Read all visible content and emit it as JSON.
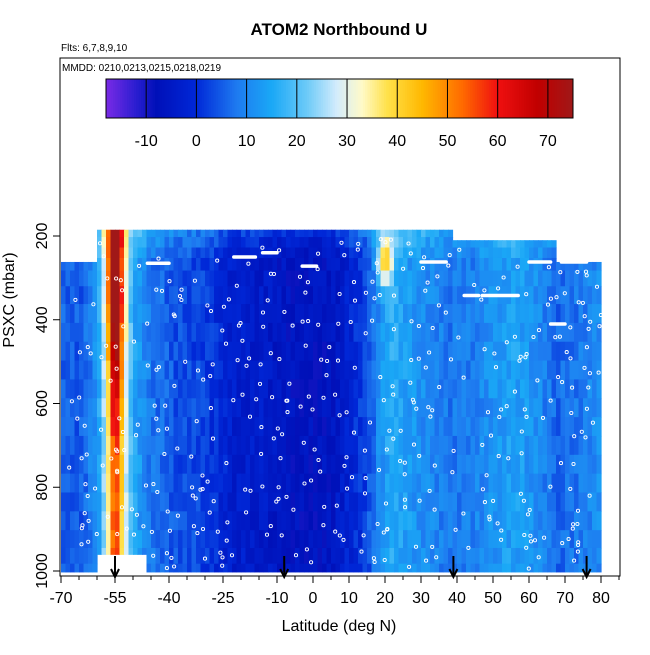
{
  "chart_data": {
    "type": "heatmap",
    "title": "ATOM2 Northbound U",
    "subtitle_flights": "Flts: 6,7,8,9,10",
    "subtitle_dates": "MMDD: 0210,0213,0215,0218,0219",
    "xlabel": "Latitude (deg N)",
    "ylabel": "PSXC (mbar)",
    "xlim": [
      -70,
      86
    ],
    "ylim": [
      1010,
      90
    ],
    "y_reversed": true,
    "x_ticks": [
      -70,
      -55,
      -40,
      -25,
      -10,
      0,
      10,
      20,
      30,
      40,
      50,
      60,
      70,
      80
    ],
    "x_tick_labels": [
      "-70",
      "-55",
      "-40",
      "-25",
      "-10",
      "0",
      "10",
      "20",
      "30",
      "40",
      "50",
      "60",
      "70",
      "80"
    ],
    "x_minor_ticks": [
      -65,
      -60,
      -50,
      -45,
      -35,
      -30,
      -20,
      -15,
      -5,
      5,
      15,
      25,
      35,
      45,
      55,
      65,
      75,
      85
    ],
    "y_ticks": [
      200,
      400,
      600,
      800,
      1000
    ],
    "y_tick_labels": [
      "200",
      "400",
      "600",
      "800",
      "1000"
    ],
    "colorbar": {
      "range": [
        -18,
        75
      ],
      "ticks": [
        -10,
        0,
        10,
        20,
        30,
        40,
        50,
        60,
        70
      ],
      "tick_labels": [
        "-10",
        "0",
        "10",
        "20",
        "30",
        "40",
        "50",
        "60",
        "70"
      ],
      "stops": [
        {
          "v": -18,
          "color": "#7a2ae6"
        },
        {
          "v": -12,
          "color": "#2a1ed0"
        },
        {
          "v": -8,
          "color": "#0010b8"
        },
        {
          "v": 0,
          "color": "#0028d8"
        },
        {
          "v": 8,
          "color": "#1e7af0"
        },
        {
          "v": 15,
          "color": "#1aa8f6"
        },
        {
          "v": 22,
          "color": "#6ccaf8"
        },
        {
          "v": 28,
          "color": "#d4ecfc"
        },
        {
          "v": 33,
          "color": "#fffac8"
        },
        {
          "v": 38,
          "color": "#ffe14a"
        },
        {
          "v": 45,
          "color": "#ffb800"
        },
        {
          "v": 53,
          "color": "#ff6a00"
        },
        {
          "v": 60,
          "color": "#f01010"
        },
        {
          "v": 68,
          "color": "#c00000"
        },
        {
          "v": 75,
          "color": "#a01818"
        }
      ]
    },
    "flight_markers_lat": [
      -55,
      -8,
      39,
      76
    ],
    "pressure_levels": [
      190,
      215,
      240,
      265,
      300,
      340,
      385,
      430,
      475,
      520,
      565,
      610,
      655,
      700,
      745,
      790,
      835,
      880,
      925,
      965,
      1000
    ],
    "profiles": [
      {
        "lat": -70,
        "u": 5
      },
      {
        "lat": -64,
        "u": 5
      },
      {
        "lat": -60,
        "u": 12
      },
      {
        "lat": -57,
        "u": 25
      },
      {
        "lat": -55,
        "u": 42
      },
      {
        "lat": -53,
        "u": 30
      },
      {
        "lat": -50,
        "u": 15
      },
      {
        "lat": -45,
        "u": 8
      },
      {
        "lat": -38,
        "u": 4
      },
      {
        "lat": -30,
        "u": 2
      },
      {
        "lat": -22,
        "u": -3
      },
      {
        "lat": -15,
        "u": -4
      },
      {
        "lat": -8,
        "u": -6
      },
      {
        "lat": -2,
        "u": -7
      },
      {
        "lat": 5,
        "u": -6
      },
      {
        "lat": 10,
        "u": -2
      },
      {
        "lat": 15,
        "u": 3
      },
      {
        "lat": 19,
        "u": 12
      },
      {
        "lat": 22,
        "u": 16
      },
      {
        "lat": 28,
        "u": 12
      },
      {
        "lat": 33,
        "u": 10
      },
      {
        "lat": 38,
        "u": 8
      },
      {
        "lat": 45,
        "u": 9
      },
      {
        "lat": 50,
        "u": 12
      },
      {
        "lat": 56,
        "u": 14
      },
      {
        "lat": 62,
        "u": 11
      },
      {
        "lat": 68,
        "u": 6
      },
      {
        "lat": 74,
        "u": 8
      },
      {
        "lat": 80,
        "u": 11
      }
    ],
    "jet_core": {
      "lat": -55,
      "peak_u": 68,
      "peak_p": 300
    },
    "subtropical_jet": {
      "lat": 20,
      "peak_u": 40,
      "peak_p": 260
    },
    "data_top_pressure": [
      {
        "lat_from": -60,
        "lat_to": 38,
        "p": 185
      },
      {
        "lat_from": 38,
        "lat_to": 67,
        "p": 210
      },
      {
        "lat_from": 67,
        "lat_to": 79,
        "p": 262
      }
    ],
    "data_bottom_pressure": [
      {
        "lat_from": -61,
        "lat_to": -47,
        "p": 960
      },
      {
        "lat_from": -47,
        "lat_to": 80,
        "p": 1002
      }
    ]
  }
}
